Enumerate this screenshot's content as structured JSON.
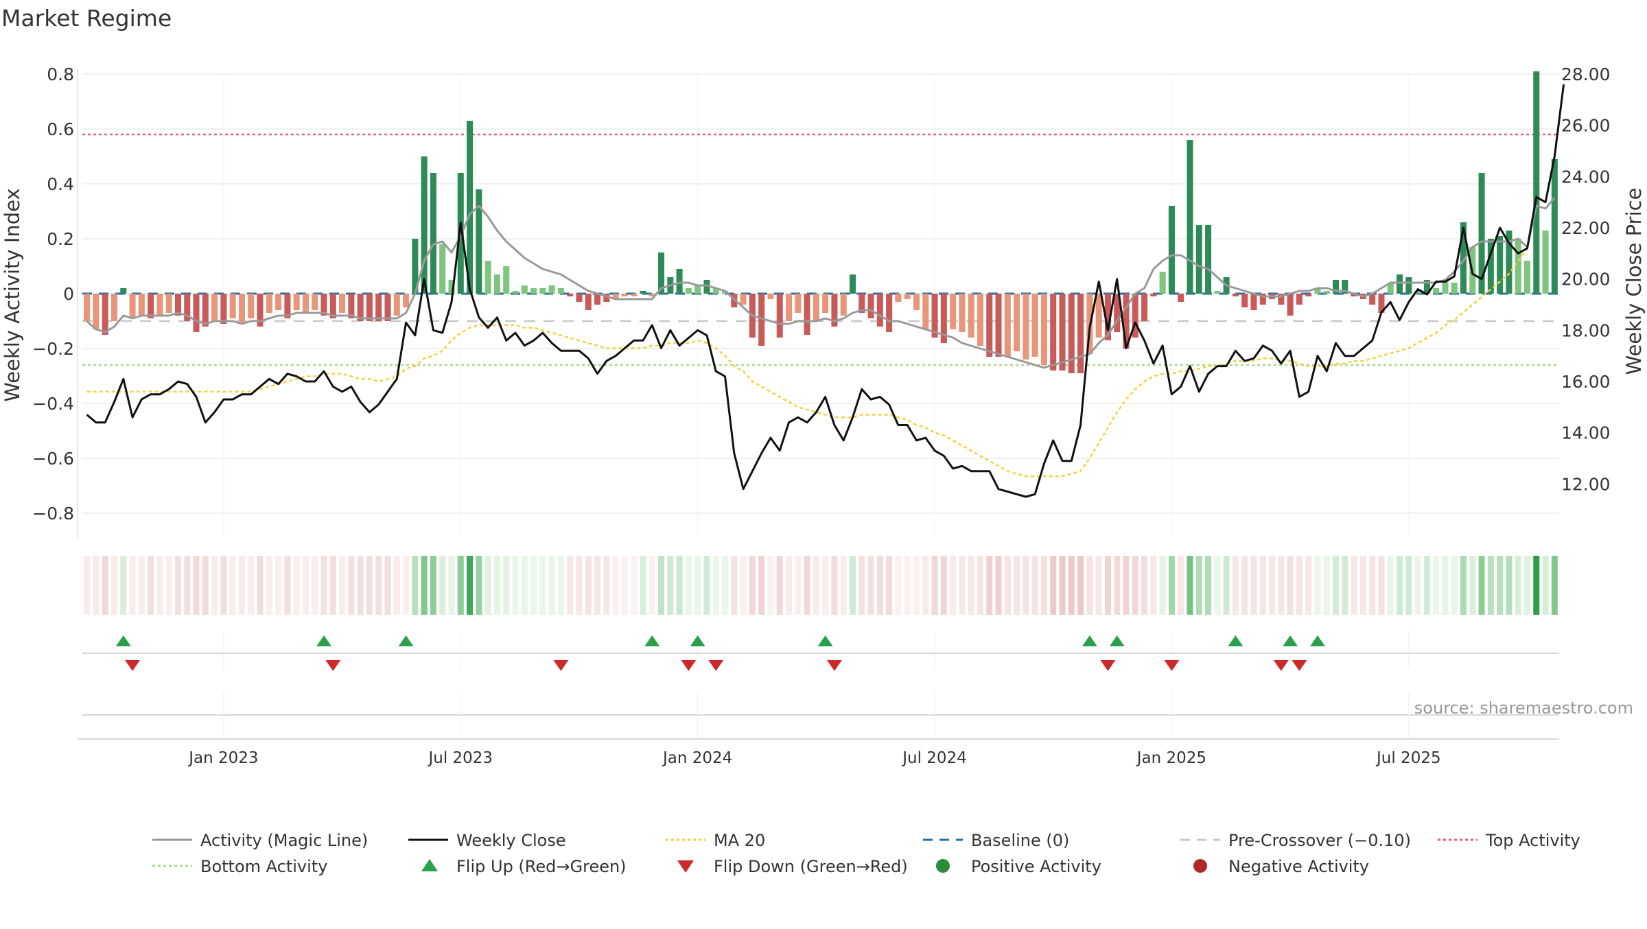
{
  "chart_data": {
    "type": "bar",
    "title": "Market Regime",
    "source": "source: sharemaestro.com",
    "ylabel_left": "Weekly Activity Index",
    "ylabel_right": "Weekly Close Price",
    "y_left_range": [
      -0.88,
      0.8
    ],
    "y_right_range": [
      10.0,
      28.0
    ],
    "y_left_ticks": [
      0.8,
      0.6,
      0.4,
      0.2,
      0,
      -0.2,
      -0.4,
      -0.6,
      -0.8
    ],
    "y_left_tick_labels": [
      "0.8",
      "0.6",
      "0.4",
      "0.2",
      "0",
      "−0.2",
      "−0.4",
      "−0.6",
      "−0.8"
    ],
    "y_right_ticks": [
      28,
      26,
      24,
      22,
      20,
      18,
      16,
      14,
      12
    ],
    "y_right_tick_labels": [
      "28.00",
      "26.00",
      "24.00",
      "22.00",
      "20.00",
      "18.00",
      "16.00",
      "14.00",
      "12.00"
    ],
    "x_tick_labels": [
      "Jan 2023",
      "Jul 2023",
      "Jan 2024",
      "Jul 2024",
      "Jan 2025",
      "Jul 2025"
    ],
    "x_tick_weeks": [
      15,
      41,
      67,
      93,
      119,
      145
    ],
    "reference_lines": {
      "top_activity": 0.58,
      "bottom_activity": -0.26,
      "pre_crossover": -0.1,
      "baseline": 0
    },
    "grid": true,
    "legend_position": "bottom",
    "colors": {
      "strong_green": "#2e8b57",
      "light_green": "#7fc47f",
      "strong_red": "#c85a5a",
      "light_red": "#e8967a",
      "magic_line": "#999999",
      "close": "#111111",
      "ma20": "#f2d23a",
      "baseline": "#1f6fa8",
      "pre_crossover": "#c8c8c8",
      "top_activity": "#e0607e",
      "bottom_activity": "#a8d88a",
      "flip_up": "#2aa04a",
      "flip_down": "#d02828"
    },
    "activity": [
      -0.1,
      -0.13,
      -0.15,
      -0.1,
      0.02,
      -0.09,
      -0.08,
      -0.09,
      -0.08,
      -0.07,
      -0.08,
      -0.1,
      -0.14,
      -0.12,
      -0.1,
      -0.11,
      -0.09,
      -0.11,
      -0.09,
      -0.12,
      -0.07,
      -0.06,
      -0.09,
      -0.06,
      -0.07,
      -0.06,
      -0.08,
      -0.09,
      -0.07,
      -0.09,
      -0.1,
      -0.1,
      -0.1,
      -0.1,
      -0.08,
      -0.05,
      0.2,
      0.5,
      0.44,
      0.18,
      0.05,
      0.44,
      0.63,
      0.38,
      0.12,
      0.07,
      0.1,
      0.01,
      0.03,
      0.02,
      0.02,
      0.03,
      0.02,
      -0.01,
      -0.03,
      -0.06,
      -0.04,
      -0.03,
      -0.02,
      -0.01,
      -0.01,
      0.01,
      -0.01,
      0.15,
      0.06,
      0.09,
      0.02,
      0.03,
      0.05,
      0.02,
      0.01,
      -0.05,
      -0.04,
      -0.16,
      -0.19,
      -0.02,
      -0.16,
      -0.1,
      -0.07,
      -0.15,
      -0.1,
      -0.07,
      -0.12,
      -0.08,
      0.07,
      -0.07,
      -0.09,
      -0.12,
      -0.14,
      -0.03,
      -0.02,
      -0.06,
      -0.13,
      -0.16,
      -0.18,
      -0.13,
      -0.14,
      -0.16,
      -0.19,
      -0.23,
      -0.23,
      -0.23,
      -0.21,
      -0.24,
      -0.23,
      -0.26,
      -0.28,
      -0.28,
      -0.29,
      -0.29,
      -0.22,
      -0.16,
      -0.17,
      -0.14,
      -0.2,
      -0.16,
      -0.1,
      -0.01,
      0.08,
      0.32,
      -0.03,
      0.56,
      0.25,
      0.25,
      0.01,
      0.06,
      -0.01,
      -0.05,
      -0.06,
      -0.04,
      -0.02,
      -0.04,
      -0.08,
      -0.04,
      -0.01,
      0.02,
      0.01,
      0.05,
      0.05,
      -0.01,
      -0.02,
      -0.04,
      -0.07,
      0.04,
      0.07,
      0.06,
      0.01,
      0.05,
      0.02,
      0.05,
      0.04,
      0.26,
      0.17,
      0.44,
      0.2,
      0.21,
      0.23,
      0.2,
      0.12,
      0.81,
      0.23,
      0.49
    ],
    "magic_line": [
      -0.1,
      -0.13,
      -0.14,
      -0.12,
      -0.08,
      -0.09,
      -0.08,
      -0.08,
      -0.08,
      -0.08,
      -0.07,
      -0.08,
      -0.1,
      -0.11,
      -0.1,
      -0.1,
      -0.1,
      -0.11,
      -0.1,
      -0.1,
      -0.09,
      -0.08,
      -0.08,
      -0.07,
      -0.07,
      -0.07,
      -0.07,
      -0.08,
      -0.08,
      -0.08,
      -0.09,
      -0.09,
      -0.09,
      -0.09,
      -0.09,
      -0.07,
      0.0,
      0.12,
      0.18,
      0.19,
      0.15,
      0.21,
      0.29,
      0.32,
      0.28,
      0.23,
      0.19,
      0.16,
      0.13,
      0.11,
      0.09,
      0.08,
      0.07,
      0.05,
      0.03,
      0.01,
      0.0,
      -0.01,
      -0.02,
      -0.02,
      -0.02,
      -0.02,
      -0.02,
      0.02,
      0.03,
      0.04,
      0.04,
      0.03,
      0.03,
      0.02,
      0.01,
      -0.02,
      -0.05,
      -0.08,
      -0.09,
      -0.1,
      -0.11,
      -0.11,
      -0.1,
      -0.1,
      -0.1,
      -0.09,
      -0.1,
      -0.09,
      -0.07,
      -0.06,
      -0.06,
      -0.08,
      -0.1,
      -0.1,
      -0.11,
      -0.12,
      -0.13,
      -0.14,
      -0.15,
      -0.16,
      -0.18,
      -0.19,
      -0.2,
      -0.21,
      -0.22,
      -0.23,
      -0.24,
      -0.25,
      -0.26,
      -0.27,
      -0.26,
      -0.25,
      -0.24,
      -0.23,
      -0.22,
      -0.18,
      -0.15,
      -0.1,
      -0.05,
      0.0,
      0.02,
      0.09,
      0.12,
      0.14,
      0.14,
      0.12,
      0.1,
      0.09,
      0.06,
      0.03,
      0.02,
      0.01,
      0.0,
      -0.01,
      -0.01,
      -0.01,
      0.0,
      0.01,
      0.01,
      0.02,
      0.02,
      0.01,
      0.01,
      0.0,
      -0.01,
      0.0,
      0.02,
      0.04,
      0.04,
      0.04,
      0.04,
      0.04,
      0.04,
      0.05,
      0.08,
      0.12,
      0.17,
      0.19,
      0.19,
      0.19,
      0.19,
      0.2,
      0.17,
      0.32,
      0.31,
      0.35
    ],
    "weekly_close": [
      14.7,
      14.4,
      14.4,
      15.2,
      16.1,
      14.6,
      15.3,
      15.5,
      15.5,
      15.7,
      16.0,
      15.9,
      15.4,
      14.4,
      14.8,
      15.3,
      15.3,
      15.5,
      15.5,
      15.8,
      16.1,
      15.9,
      16.3,
      16.2,
      16.0,
      16.0,
      16.4,
      15.8,
      15.6,
      15.8,
      15.2,
      14.8,
      15.1,
      15.6,
      16.1,
      18.3,
      17.8,
      20.0,
      18.0,
      17.9,
      19.1,
      22.2,
      19.6,
      18.5,
      18.1,
      18.5,
      17.6,
      17.9,
      17.4,
      17.6,
      17.9,
      17.5,
      17.2,
      17.2,
      17.2,
      16.9,
      16.3,
      16.8,
      17.0,
      17.3,
      17.6,
      17.6,
      18.2,
      17.3,
      18.0,
      17.4,
      17.7,
      18.0,
      17.8,
      16.4,
      16.2,
      13.2,
      11.8,
      12.5,
      13.2,
      13.8,
      13.3,
      14.4,
      14.6,
      14.4,
      14.8,
      15.4,
      14.3,
      13.7,
      14.6,
      15.7,
      15.3,
      15.4,
      15.1,
      14.3,
      14.3,
      13.7,
      13.8,
      13.3,
      13.1,
      12.6,
      12.7,
      12.5,
      12.5,
      12.5,
      11.8,
      11.7,
      11.6,
      11.5,
      11.6,
      12.8,
      13.7,
      12.9,
      12.9,
      14.3,
      18.1,
      19.9,
      18.0,
      20.0,
      17.3,
      18.3,
      17.6,
      16.7,
      17.4,
      15.5,
      15.8,
      16.6,
      15.6,
      16.3,
      16.6,
      16.6,
      17.2,
      16.8,
      16.9,
      17.4,
      17.2,
      16.7,
      17.2,
      15.4,
      15.6,
      17.0,
      16.4,
      17.5,
      17.0,
      17.0,
      17.3,
      17.6,
      18.7,
      19.1,
      18.4,
      19.1,
      19.6,
      19.4,
      19.9,
      19.9,
      20.1,
      22.0,
      20.2,
      20.0,
      21.0,
      22.0,
      21.4,
      21.0,
      21.2,
      23.2,
      23.0,
      24.8,
      27.6
    ],
    "ma20": [
      15.6,
      15.6,
      15.6,
      15.6,
      15.6,
      15.6,
      15.6,
      15.6,
      15.6,
      15.6,
      15.6,
      15.6,
      15.6,
      15.6,
      15.6,
      15.6,
      15.6,
      15.6,
      15.6,
      15.7,
      15.8,
      15.9,
      16.0,
      16.1,
      16.2,
      16.2,
      16.3,
      16.3,
      16.3,
      16.2,
      16.1,
      16.1,
      16.0,
      16.1,
      16.2,
      16.5,
      16.6,
      16.9,
      17.0,
      17.2,
      17.6,
      17.9,
      18.1,
      18.2,
      18.2,
      18.2,
      18.2,
      18.2,
      18.1,
      18.1,
      18.0,
      17.9,
      17.8,
      17.7,
      17.6,
      17.5,
      17.4,
      17.3,
      17.3,
      17.3,
      17.3,
      17.3,
      17.4,
      17.4,
      17.5,
      17.5,
      17.5,
      17.6,
      17.5,
      17.3,
      17.0,
      16.6,
      16.4,
      16.0,
      15.8,
      15.6,
      15.4,
      15.2,
      15.0,
      14.9,
      14.8,
      14.7,
      14.6,
      14.6,
      14.6,
      14.7,
      14.7,
      14.7,
      14.7,
      14.6,
      14.5,
      14.3,
      14.2,
      14.0,
      13.9,
      13.7,
      13.5,
      13.3,
      13.1,
      12.9,
      12.7,
      12.5,
      12.4,
      12.3,
      12.3,
      12.3,
      12.3,
      12.3,
      12.4,
      12.5,
      13.0,
      13.6,
      14.2,
      14.8,
      15.3,
      15.7,
      16.0,
      16.2,
      16.3,
      16.3,
      16.4,
      16.4,
      16.5,
      16.6,
      16.6,
      16.7,
      16.8,
      16.8,
      16.8,
      16.9,
      16.9,
      16.8,
      16.8,
      16.7,
      16.6,
      16.6,
      16.6,
      16.7,
      16.7,
      16.8,
      16.8,
      16.9,
      17.0,
      17.1,
      17.2,
      17.3,
      17.5,
      17.7,
      17.9,
      18.2,
      18.4,
      18.7,
      19.0,
      19.3,
      19.6,
      19.9,
      20.2,
      20.7,
      21.2
    ],
    "flip_up_weeks": [
      4,
      26,
      35,
      62,
      67,
      81,
      110,
      113,
      126,
      132,
      135
    ],
    "flip_down_weeks": [
      5,
      27,
      52,
      66,
      69,
      82,
      112,
      119,
      131,
      133
    ]
  },
  "legend": {
    "magic_line": "Activity (Magic Line)",
    "weekly_close": "Weekly Close",
    "ma20": "MA 20",
    "baseline": "Baseline (0)",
    "pre_crossover": "Pre-Crossover (−0.10)",
    "top_activity": "Top Activity",
    "bottom_activity": "Bottom Activity",
    "flip_up": "Flip Up (Red→Green)",
    "flip_down": "Flip Down (Green→Red)",
    "positive": "Positive Activity",
    "negative": "Negative Activity"
  }
}
